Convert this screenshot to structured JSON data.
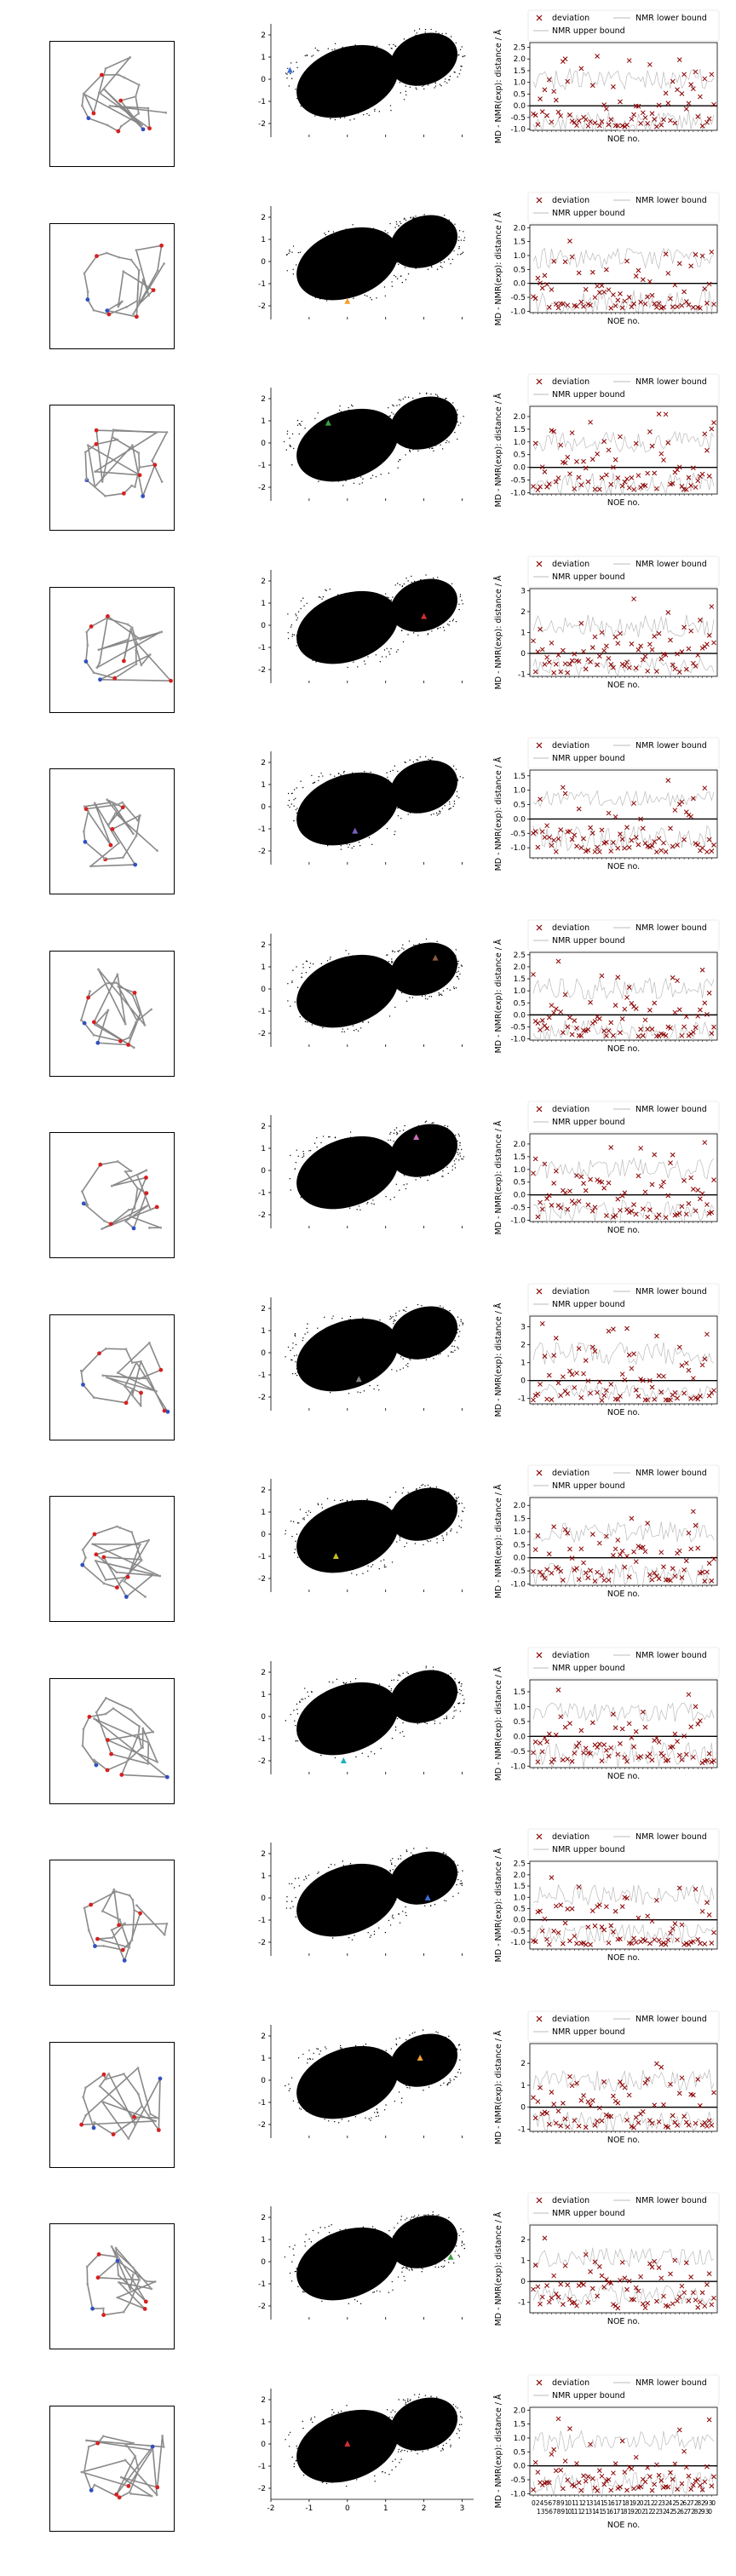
{
  "legend": {
    "deviation": "deviation",
    "lower": "NMR lower bound",
    "upper": "NMR upper bound"
  },
  "axes": {
    "ylabel": "MD - NMR(exp): distance / Å",
    "xlabel": "NOE no."
  },
  "scatter_axis": {
    "x_ticks": [
      "-2",
      "-1",
      "0",
      "1",
      "2",
      "3"
    ],
    "y_ticks": [
      "2",
      "1",
      "0",
      "-1",
      "-2"
    ]
  },
  "bottom_noe_ticks_row1": "0 2 4 5 6 7 8 9 10 11 12 13 14 15 16 17 18 19 20 21 22 23 24 25 26 27 28 29 30",
  "bottom_noe_ticks_row2": "1 3 5 6 7 8 9 1011 12 13 14 15 16 17 18 19 20 21 22 23 24 25 26 27 28 29 30",
  "colors": {
    "deviation": "#8b0000",
    "bounds": "#bbbbbb",
    "cloud": "#000000"
  },
  "chart_data": [
    {
      "type": "scatter",
      "panel": 1,
      "marker_xy": [
        -1.5,
        0.4
      ],
      "marker_color": "#3b6fd4",
      "yticks": [
        "2.5",
        "2.0",
        "1.5",
        "1.0",
        "0.5",
        "0.0",
        "-0.5",
        "-1.0"
      ],
      "ylim": [
        -1.05,
        2.7
      ]
    },
    {
      "type": "scatter",
      "panel": 2,
      "marker_xy": [
        0.0,
        -1.8
      ],
      "marker_color": "#f0a030",
      "yticks": [
        "2.0",
        "1.5",
        "1.0",
        "0.5",
        "0.0",
        "-0.5",
        "-1.0"
      ],
      "ylim": [
        -1.05,
        2.1
      ]
    },
    {
      "type": "scatter",
      "panel": 3,
      "marker_xy": [
        -0.5,
        0.9
      ],
      "marker_color": "#3ca040",
      "yticks": [
        "2.0",
        "1.5",
        "1.0",
        "0.5",
        "0.0",
        "-0.5",
        "-1.0"
      ],
      "ylim": [
        -1.05,
        2.4
      ]
    },
    {
      "type": "scatter",
      "panel": 4,
      "marker_xy": [
        2.0,
        0.4
      ],
      "marker_color": "#d03030",
      "yticks": [
        "3",
        "2",
        "1",
        "0",
        "-1"
      ],
      "ylim": [
        -1.1,
        3.1
      ]
    },
    {
      "type": "scatter",
      "panel": 5,
      "marker_xy": [
        0.2,
        -1.1
      ],
      "marker_color": "#7b5fc0",
      "yticks": [
        "1.5",
        "1.0",
        "0.5",
        "0.0",
        "-0.5",
        "-1.0"
      ],
      "ylim": [
        -1.35,
        1.7
      ]
    },
    {
      "type": "scatter",
      "panel": 6,
      "marker_xy": [
        2.3,
        1.4
      ],
      "marker_color": "#8b5a3c",
      "yticks": [
        "2.5",
        "2.0",
        "1.5",
        "1.0",
        "0.5",
        "0.0",
        "-0.5",
        "-1.0"
      ],
      "ylim": [
        -1.05,
        2.6
      ]
    },
    {
      "type": "scatter",
      "panel": 7,
      "marker_xy": [
        1.8,
        1.5
      ],
      "marker_color": "#d070c0",
      "yticks": [
        "2.0",
        "1.5",
        "1.0",
        "0.5",
        "0.0",
        "-0.5",
        "-1.0"
      ],
      "ylim": [
        -1.05,
        2.4
      ]
    },
    {
      "type": "scatter",
      "panel": 8,
      "marker_xy": [
        0.3,
        -1.2
      ],
      "marker_color": "#808080",
      "yticks": [
        "3",
        "2",
        "1",
        "0",
        "-1"
      ],
      "ylim": [
        -1.3,
        3.6
      ]
    },
    {
      "type": "scatter",
      "panel": 9,
      "marker_xy": [
        -0.3,
        -1.0
      ],
      "marker_color": "#c8c020",
      "yticks": [
        "2.0",
        "1.5",
        "1.0",
        "0.5",
        "0.0",
        "-0.5",
        "-1.0"
      ],
      "ylim": [
        -1.05,
        2.3
      ]
    },
    {
      "type": "scatter",
      "panel": 10,
      "marker_xy": [
        -0.1,
        -2.0
      ],
      "marker_color": "#20b0c0",
      "yticks": [
        "1.5",
        "1.0",
        "0.5",
        "0.0",
        "-0.5",
        "-1.0"
      ],
      "ylim": [
        -1.05,
        1.9
      ]
    },
    {
      "type": "scatter",
      "panel": 11,
      "marker_xy": [
        2.1,
        0.0
      ],
      "marker_color": "#3b6fd4",
      "yticks": [
        "2.5",
        "2.0",
        "1.5",
        "1.0",
        "0.5",
        "0.0",
        "-0.5",
        "-1.0"
      ],
      "ylim": [
        -1.3,
        2.6
      ]
    },
    {
      "type": "scatter",
      "panel": 12,
      "marker_xy": [
        1.9,
        1.0
      ],
      "marker_color": "#f0a030",
      "yticks": [
        "2",
        "1",
        "0",
        "-1"
      ],
      "ylim": [
        -1.1,
        2.9
      ]
    },
    {
      "type": "scatter",
      "panel": 13,
      "marker_xy": [
        2.7,
        0.2
      ],
      "marker_color": "#3ca040",
      "yticks": [
        "2",
        "1",
        "0",
        "-1"
      ],
      "ylim": [
        -1.5,
        2.7
      ]
    },
    {
      "type": "scatter",
      "panel": 14,
      "marker_xy": [
        0.0,
        0.0
      ],
      "marker_color": "#d03030",
      "yticks": [
        "2.0",
        "1.5",
        "1.0",
        "0.5",
        "0.0",
        "-0.5",
        "-1.0"
      ],
      "ylim": [
        -1.05,
        2.1
      ]
    }
  ]
}
